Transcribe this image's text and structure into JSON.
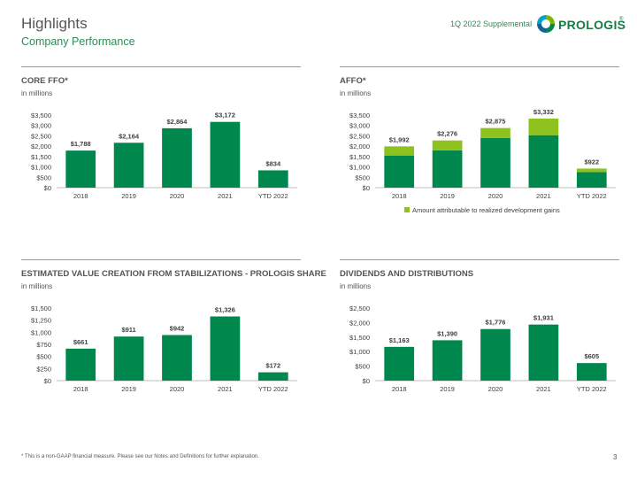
{
  "header": {
    "title": "Highlights",
    "subtitle": "Company Performance",
    "supplemental": "1Q 2022 Supplemental",
    "logo_text": "PROLOGIS",
    "logo_mark": "®"
  },
  "colors": {
    "bar": "#00874e",
    "dev_gains": "#8dc21f",
    "axis": "#bfbfbf",
    "tick_text": "#404040"
  },
  "chart_data": [
    {
      "id": "core_ffo",
      "type": "bar",
      "title": "CORE FFO*",
      "unit_label": "in millions",
      "categories": [
        "2018",
        "2019",
        "2020",
        "2021",
        "YTD 2022"
      ],
      "values": [
        1788,
        2164,
        2864,
        3172,
        834
      ],
      "value_labels": [
        "$1,788",
        "$2,164",
        "$2,864",
        "$3,172",
        "$834"
      ],
      "yticks": [
        "$0",
        "$500",
        "$1,000",
        "$1,500",
        "$2,000",
        "$2,500",
        "$3,000",
        "$3,500"
      ],
      "ylim": [
        0,
        3500
      ]
    },
    {
      "id": "affo",
      "type": "bar",
      "stacked": true,
      "title": "AFFO*",
      "unit_label": "in millions",
      "categories": [
        "2018",
        "2019",
        "2020",
        "2021",
        "YTD 2022"
      ],
      "series": [
        {
          "values": [
            1550,
            1800,
            2400,
            2530,
            750
          ]
        },
        {
          "name": "Amount attributable to realized development gains",
          "values": [
            442,
            476,
            475,
            802,
            172
          ]
        }
      ],
      "totals": [
        1992,
        2276,
        2875,
        3332,
        922
      ],
      "value_labels": [
        "$1,992",
        "$2,276",
        "$2,875",
        "$3,332",
        "$922"
      ],
      "yticks": [
        "$0",
        "$500",
        "$1,000",
        "$1,500",
        "$2,000",
        "$2,500",
        "$3,000",
        "$3,500"
      ],
      "ylim": [
        0,
        3500
      ],
      "legend_position": "bottom"
    },
    {
      "id": "value_creation",
      "type": "bar",
      "title": "ESTIMATED VALUE CREATION FROM STABILIZATIONS - PROLOGIS SHARE",
      "unit_label": "in millions",
      "categories": [
        "2018",
        "2019",
        "2020",
        "2021",
        "YTD 2022"
      ],
      "values": [
        661,
        911,
        942,
        1326,
        172
      ],
      "value_labels": [
        "$661",
        "$911",
        "$942",
        "$1,326",
        "$172"
      ],
      "yticks": [
        "$0",
        "$250",
        "$500",
        "$750",
        "$1,000",
        "$1,250",
        "$1,500"
      ],
      "ylim": [
        0,
        1500
      ]
    },
    {
      "id": "dividends",
      "type": "bar",
      "title": "DIVIDENDS AND DISTRIBUTIONS",
      "unit_label": "in millions",
      "categories": [
        "2018",
        "2019",
        "2020",
        "2021",
        "YTD 2022"
      ],
      "values": [
        1163,
        1390,
        1776,
        1931,
        605
      ],
      "value_labels": [
        "$1,163",
        "$1,390",
        "$1,776",
        "$1,931",
        "$605"
      ],
      "yticks": [
        "$0",
        "$500",
        "$1,000",
        "$1,500",
        "$2,000",
        "$2,500"
      ],
      "ylim": [
        0,
        2500
      ]
    }
  ],
  "footer": {
    "footnote": "* This is a non-GAAP financial measure. Please see our Notes and Definitions for further explanation.",
    "page_number": "3"
  }
}
